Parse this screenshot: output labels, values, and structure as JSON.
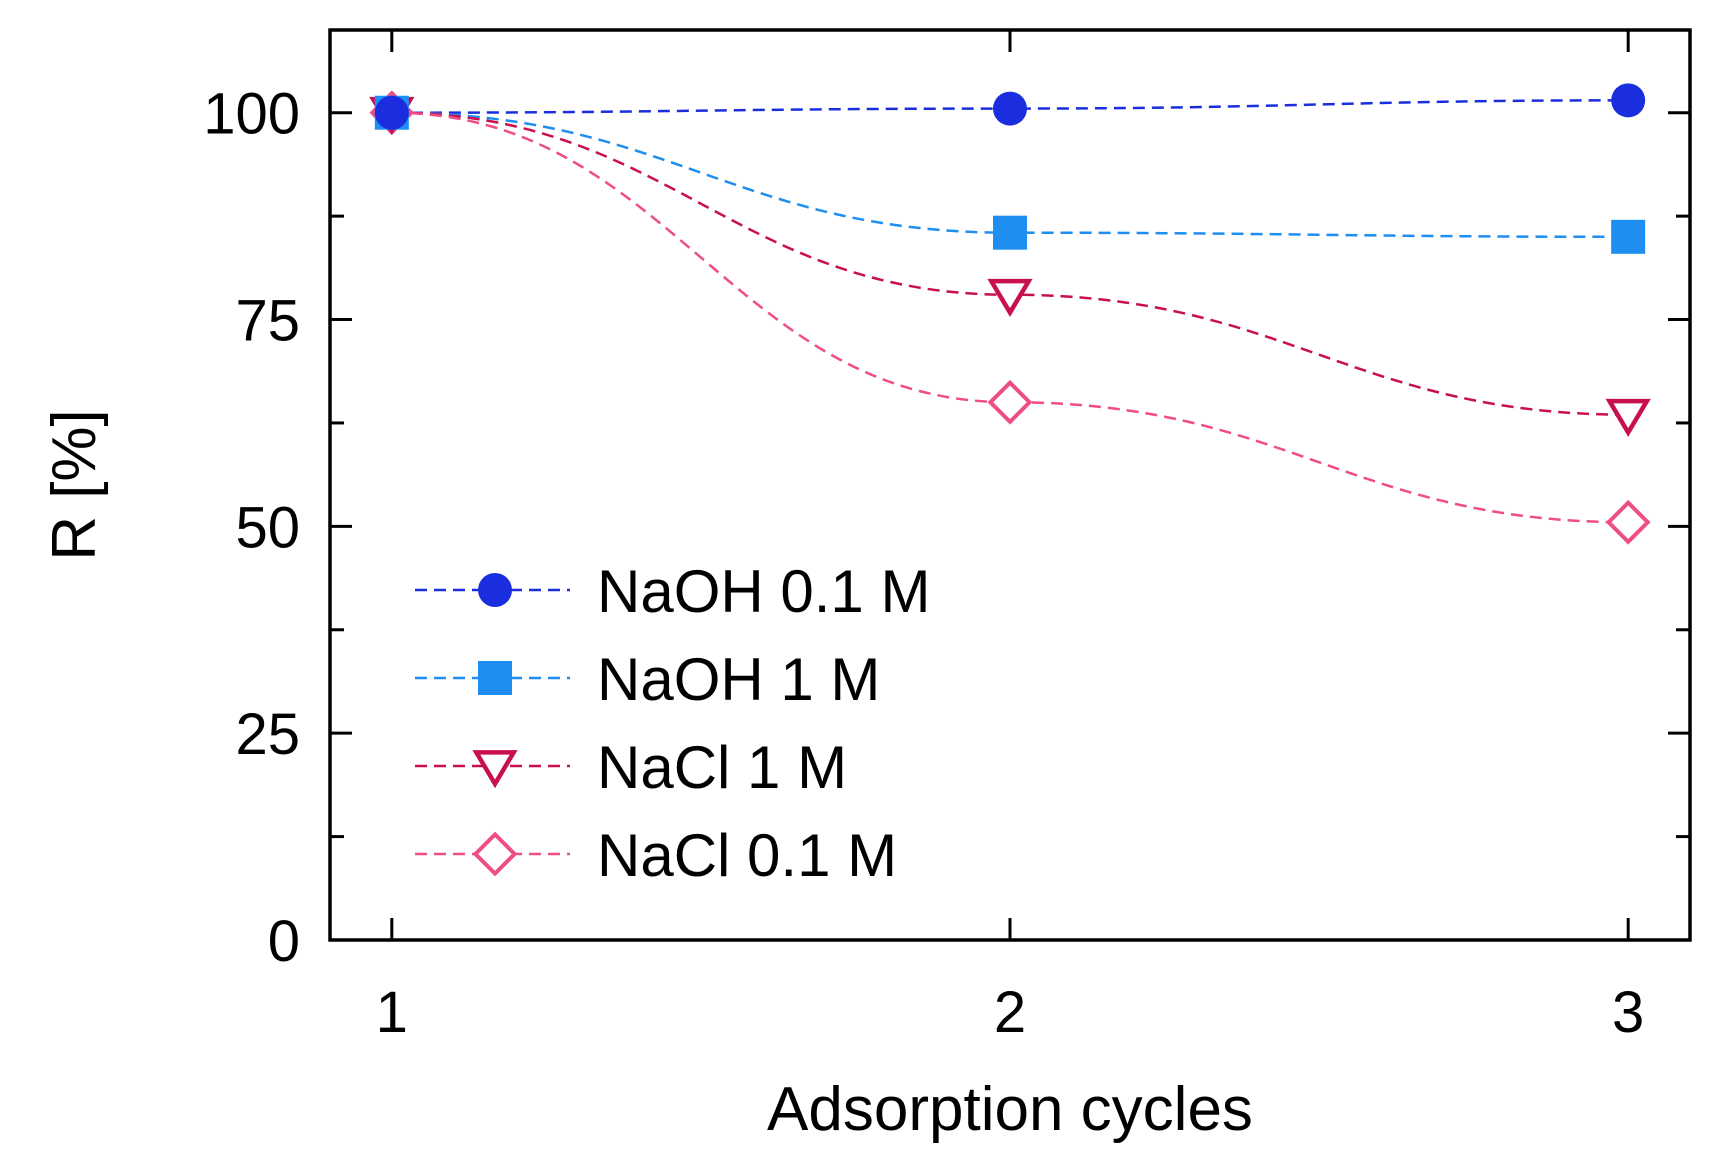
{
  "chart_data": {
    "type": "line",
    "xlabel": "Adsorption cycles",
    "ylabel": "R [%]",
    "x": [
      1,
      2,
      3
    ],
    "xlim": [
      0.9,
      3.1
    ],
    "ylim": [
      0,
      110
    ],
    "xticks": [
      1,
      2,
      3
    ],
    "yticks_labeled": [
      0,
      25,
      50,
      75,
      100
    ],
    "yticks_minor": [
      12.5,
      37.5,
      62.5,
      87.5
    ],
    "grid": false,
    "legend_position": "center-left",
    "series": [
      {
        "name": "NaOH 0.1 M",
        "values": [
          100,
          100.5,
          101.5
        ],
        "color": "#1a2ee0",
        "marker": "filled-circle"
      },
      {
        "name": "NaOH 1 M",
        "values": [
          100,
          85.5,
          85
        ],
        "color": "#1e8ef0",
        "marker": "filled-square"
      },
      {
        "name": "NaCl 1 M",
        "values": [
          100,
          78,
          63.5
        ],
        "color": "#c8104e",
        "marker": "open-triangle-down"
      },
      {
        "name": "NaCl 0.1 M",
        "values": [
          100,
          65,
          50.5
        ],
        "color": "#ef4d86",
        "marker": "open-diamond"
      }
    ]
  }
}
